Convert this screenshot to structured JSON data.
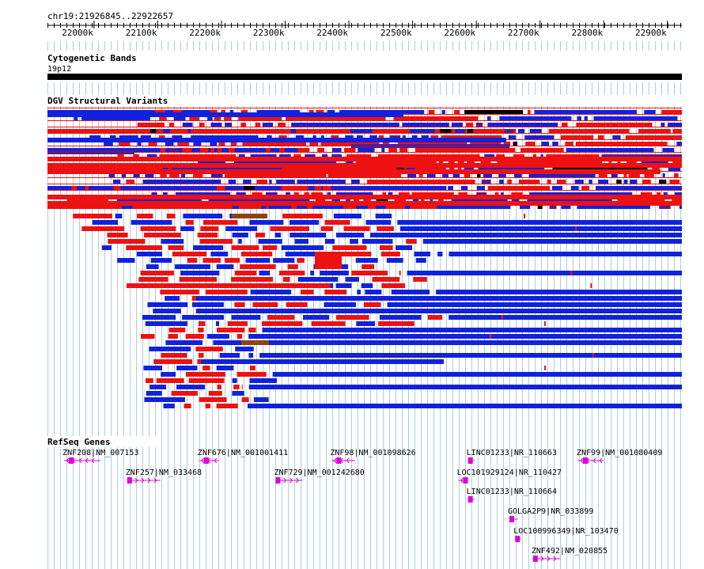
{
  "ruler": {
    "region": "chr19:21926845..22922657",
    "start": 21926845,
    "end": 22922657,
    "ticks": [
      22000000,
      22100000,
      22200000,
      22300000,
      22400000,
      22500000,
      22600000,
      22700000,
      22800000,
      22900000
    ],
    "tick_labels": [
      "22000k",
      "22100k",
      "22200k",
      "22300k",
      "22400k",
      "22500k",
      "22600k",
      "22700k",
      "22800k",
      "22900k"
    ]
  },
  "tracks": {
    "cyto": {
      "title": "Cytogenetic Bands",
      "band_label": "19p12"
    },
    "dgv": {
      "title": "DGV Structural Variants"
    },
    "refseq": {
      "title": "RefSeq Genes"
    }
  },
  "colors": {
    "gain": "#ee1111",
    "loss": "#1122dd",
    "both": "#5a1a8a",
    "inversion": "#8b4513",
    "other": "#000000",
    "gene": "#dd00dd",
    "grid": "#aacfe0"
  },
  "genes": [
    {
      "label": "ZNF208|NM_007153",
      "strand": "-",
      "start": 21953000,
      "end": 22010000,
      "row": 0
    },
    {
      "label": "ZNF676|NM_001001411",
      "strand": "-",
      "start": 22165000,
      "end": 22195000,
      "row": 0
    },
    {
      "label": "ZNF98|NM_001098626",
      "strand": "-",
      "start": 22373000,
      "end": 22410000,
      "row": 0
    },
    {
      "label": "LINC01233|NR_110663",
      "strand": "+",
      "start": 22587000,
      "end": 22597000,
      "row": 0
    },
    {
      "label": "ZNF99|NM_001080409",
      "strand": "-",
      "start": 22760000,
      "end": 22800000,
      "row": 0
    },
    {
      "label": "ZNF257|NM_033468",
      "strand": "+",
      "start": 22052000,
      "end": 22104000,
      "row": 1
    },
    {
      "label": "ZNF729|NM_001242680",
      "strand": "+",
      "start": 22285000,
      "end": 22327000,
      "row": 1
    },
    {
      "label": "LOC101929124|NR_110427",
      "strand": "-",
      "start": 22572000,
      "end": 22583000,
      "row": 1
    },
    {
      "label": "LINC01233|NR_110664",
      "strand": "+",
      "start": 22587000,
      "end": 22597000,
      "row": 2
    },
    {
      "label": "GOLGA2P9|NR_033899",
      "strand": "+",
      "start": 22652000,
      "end": 22665000,
      "row": 3
    },
    {
      "label": "LOC100996349|NR_103470",
      "strand": "+",
      "start": 22661000,
      "end": 22670000,
      "row": 4
    },
    {
      "label": "ZNF492|NM_020855",
      "strand": "+",
      "start": 22689000,
      "end": 22732000,
      "row": 5
    }
  ]
}
